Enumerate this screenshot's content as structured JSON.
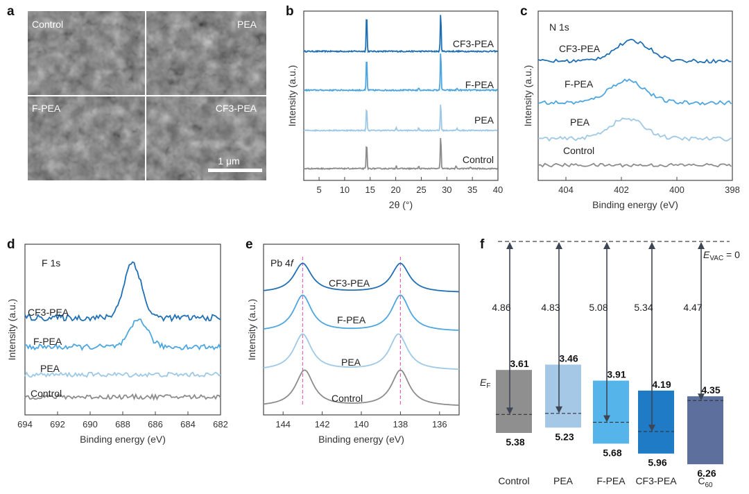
{
  "panels": {
    "a": {
      "label": "a",
      "images": [
        "Control",
        "PEA",
        "F-PEA",
        "CF3-PEA"
      ],
      "scalebar": "1 μm"
    },
    "b": {
      "label": "b"
    },
    "c": {
      "label": "c",
      "title": "N 1s"
    },
    "d": {
      "label": "d",
      "title": "F 1s"
    },
    "e": {
      "label": "e",
      "title_main": "Pb 4",
      "title_italic": "f"
    },
    "f": {
      "label": "f"
    }
  },
  "chart_data": [
    {
      "id": "b",
      "type": "line",
      "title": "",
      "xlabel": "2θ (°)",
      "ylabel": "Intensity (a.u.)",
      "xlim": [
        2,
        40
      ],
      "xticks": [
        5,
        10,
        15,
        20,
        25,
        30,
        35,
        40
      ],
      "series": [
        {
          "name": "CF3-PEA",
          "color": "#1f6fb5",
          "peaks": [
            [
              14.3,
              1.0
            ],
            [
              28.8,
              1.0
            ]
          ],
          "minor": []
        },
        {
          "name": "F-PEA",
          "color": "#4da6df",
          "peaks": [
            [
              14.3,
              0.85
            ],
            [
              28.8,
              1.0
            ]
          ],
          "minor": [
            [
              24.5,
              0.06
            ],
            [
              32.0,
              0.05
            ]
          ]
        },
        {
          "name": "PEA",
          "color": "#9ec9e6",
          "peaks": [
            [
              14.3,
              0.7
            ],
            [
              28.8,
              0.8
            ]
          ],
          "minor": [
            [
              20.1,
              0.08
            ],
            [
              24.5,
              0.07
            ],
            [
              32.0,
              0.06
            ]
          ]
        },
        {
          "name": "Control",
          "color": "#8c8c8c",
          "peaks": [
            [
              14.3,
              0.75
            ],
            [
              28.8,
              0.95
            ]
          ],
          "minor": [
            [
              20.1,
              0.08
            ],
            [
              24.5,
              0.06
            ],
            [
              31.8,
              0.06
            ],
            [
              34.6,
              0.05
            ]
          ]
        }
      ]
    },
    {
      "id": "c",
      "type": "line",
      "title": "N 1s",
      "xlabel": "Binding energy (eV)",
      "ylabel": "Intensity (a.u.)",
      "xlim": [
        405,
        398
      ],
      "xticks": [
        404,
        402,
        400,
        398
      ],
      "series": [
        {
          "name": "CF3-PEA",
          "color": "#1f6fb5",
          "peak_center": 401.6,
          "peak_height": 0.9,
          "peak_width": 0.9
        },
        {
          "name": "F-PEA",
          "color": "#4da6df",
          "peak_center": 401.8,
          "peak_height": 0.9,
          "peak_width": 0.9
        },
        {
          "name": "PEA",
          "color": "#9ec9e6",
          "peak_center": 401.8,
          "peak_height": 0.8,
          "peak_width": 0.9
        },
        {
          "name": "Control",
          "color": "#8c8c8c",
          "peak_center": 401.8,
          "peak_height": 0.0,
          "peak_width": 0.9
        }
      ]
    },
    {
      "id": "d",
      "type": "line",
      "title": "F 1s",
      "xlabel": "Binding energy (eV)",
      "ylabel": "Intensity (a.u.)",
      "xlim": [
        694,
        682
      ],
      "xticks": [
        694,
        692,
        690,
        688,
        686,
        684,
        682
      ],
      "series": [
        {
          "name": "CF3-PEA",
          "color": "#1f6fb5",
          "peak_center": 687.4,
          "peak_height": 1.0,
          "peak_width": 0.75
        },
        {
          "name": "F-PEA",
          "color": "#4da6df",
          "peak_center": 687.0,
          "peak_height": 0.55,
          "peak_width": 0.75
        },
        {
          "name": "PEA",
          "color": "#9ec9e6",
          "peak_center": 687.0,
          "peak_height": 0.0,
          "peak_width": 0.75
        },
        {
          "name": "Control",
          "color": "#8c8c8c",
          "peak_center": 687.0,
          "peak_height": 0.0,
          "peak_width": 0.75
        }
      ]
    },
    {
      "id": "e",
      "type": "line",
      "title": "Pb 4f",
      "xlabel": "Binding energy (eV)",
      "ylabel": "Intensity (a.u.)",
      "xlim": [
        145,
        135
      ],
      "xticks": [
        144,
        142,
        140,
        138,
        136
      ],
      "reference_lines": [
        143.0,
        138.0
      ],
      "series": [
        {
          "name": "CF3-PEA",
          "color": "#1f6fb5",
          "peaks": [
            143.0,
            138.0
          ]
        },
        {
          "name": "F-PEA",
          "color": "#4da6df",
          "peaks": [
            143.0,
            138.0
          ]
        },
        {
          "name": "PEA",
          "color": "#9ec9e6",
          "peaks": [
            143.0,
            138.1
          ]
        },
        {
          "name": "Control",
          "color": "#8c8c8c",
          "peaks": [
            142.9,
            138.0
          ]
        }
      ]
    },
    {
      "id": "f",
      "type": "bar",
      "title": "",
      "evac_label_main": "E",
      "evac_label_sub": "VAC",
      "evac_label_tail": " = 0",
      "ef_label_main": "E",
      "ef_label_sub": "F",
      "ylim": [
        0,
        6.6
      ],
      "categories": [
        "Control",
        "PEA",
        "F-PEA",
        "CF3-PEA",
        "C60"
      ],
      "category_labels": [
        {
          "main": "Control",
          "sub": ""
        },
        {
          "main": "PEA",
          "sub": ""
        },
        {
          "main": "F-PEA",
          "sub": ""
        },
        {
          "main": "CF3-PEA",
          "sub": ""
        },
        {
          "main": "C",
          "sub": "60"
        }
      ],
      "cbm": [
        3.61,
        3.46,
        3.91,
        4.19,
        4.35
      ],
      "vbm": [
        5.38,
        5.23,
        5.68,
        5.96,
        6.26
      ],
      "work_function": [
        4.86,
        4.83,
        5.08,
        5.34,
        4.47
      ],
      "cbm_labels": [
        "3.61",
        "3.46",
        "3.91",
        "4.19",
        "4.35"
      ],
      "vbm_labels": [
        "5.38",
        "5.23",
        "5.68",
        "5.96",
        "6.26"
      ],
      "wf_labels": [
        "4.86",
        "4.83",
        "5.08",
        "5.34",
        "4.47"
      ],
      "colors": [
        "#8f8f8f",
        "#a4c8e6",
        "#55b4ea",
        "#1f7bc5",
        "#5d6f9c"
      ]
    }
  ]
}
